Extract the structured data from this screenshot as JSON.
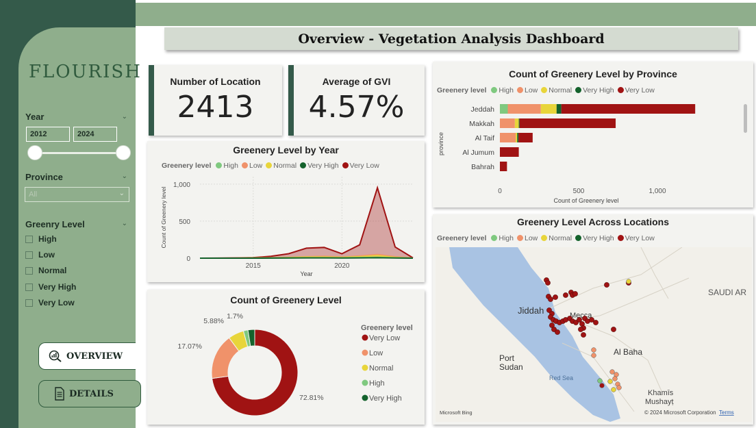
{
  "colors": {
    "high": "#7fc97f",
    "low": "#f0926a",
    "normal": "#e8d53a",
    "very_high": "#14622c",
    "very_low": "#a01313"
  },
  "sidebar": {
    "logo": "FLOURISH",
    "year_filter": {
      "label": "Year",
      "from": "2012",
      "to": "2024"
    },
    "province_filter": {
      "label": "Province",
      "value": "All"
    },
    "greenery_filter": {
      "label": "Greenry Level",
      "options": [
        "High",
        "Low",
        "Normal",
        "Very High",
        "Very Low"
      ]
    },
    "nav": {
      "overview": "OVERVIEW",
      "details": "DETAILS"
    }
  },
  "header": {
    "title": "Overview - Vegetation Analysis Dashboard"
  },
  "kpis": {
    "locations": {
      "label": "Number of Location",
      "value": "2413"
    },
    "gvi": {
      "label": "Average of GVI",
      "value": "4.57%"
    }
  },
  "legend": {
    "title": "Greenery level",
    "items": [
      "High",
      "Low",
      "Normal",
      "Very High",
      "Very Low"
    ]
  },
  "chart_data": [
    {
      "type": "area",
      "title": "Greenery Level by Year",
      "xlabel": "Year",
      "ylabel": "Count of Greenery level",
      "x": [
        2012,
        2013,
        2014,
        2015,
        2016,
        2017,
        2018,
        2019,
        2020,
        2021,
        2022,
        2023,
        2024
      ],
      "xticks": [
        "2015",
        "2020"
      ],
      "yticks": [
        "0",
        "500",
        "1,000"
      ],
      "ylim": [
        0,
        1100
      ],
      "series": [
        {
          "name": "Very Low",
          "values": [
            0,
            1,
            3,
            8,
            25,
            60,
            135,
            145,
            60,
            180,
            950,
            150,
            5
          ]
        },
        {
          "name": "Low",
          "values": [
            0,
            0,
            1,
            3,
            6,
            10,
            20,
            25,
            15,
            30,
            50,
            20,
            1
          ]
        },
        {
          "name": "Normal",
          "values": [
            0,
            0,
            0,
            2,
            4,
            8,
            15,
            15,
            10,
            20,
            35,
            10,
            0
          ]
        },
        {
          "name": "High",
          "values": [
            0,
            0,
            0,
            1,
            2,
            3,
            6,
            6,
            4,
            8,
            12,
            5,
            0
          ]
        },
        {
          "name": "Very High",
          "values": [
            0,
            0,
            0,
            0,
            1,
            2,
            3,
            3,
            2,
            4,
            6,
            2,
            0
          ]
        }
      ]
    },
    {
      "type": "bar",
      "orientation": "horizontal",
      "stacked": true,
      "title": "Count of Greenery Level by Province",
      "xlabel": "Count of Greenery level",
      "ylabel": "province",
      "categories": [
        "Jeddah",
        "Makkah",
        "Al Taif",
        "Al Jumum",
        "Bahrah"
      ],
      "xticks": [
        "0",
        "500",
        "1,000"
      ],
      "xlim": [
        0,
        1400
      ],
      "series": [
        {
          "name": "High",
          "values": [
            50,
            0,
            0,
            0,
            0
          ]
        },
        {
          "name": "Low",
          "values": [
            210,
            95,
            100,
            0,
            0
          ]
        },
        {
          "name": "Normal",
          "values": [
            100,
            25,
            10,
            0,
            0
          ]
        },
        {
          "name": "Very High",
          "values": [
            30,
            5,
            8,
            0,
            0
          ]
        },
        {
          "name": "Very Low",
          "values": [
            850,
            610,
            90,
            120,
            45
          ]
        }
      ]
    },
    {
      "type": "pie",
      "donut": true,
      "title": "Count of Greenery Level",
      "legend_title": "Greenery level",
      "slices": [
        {
          "name": "Very Low",
          "value": 72.81,
          "label": "72.81%"
        },
        {
          "name": "Low",
          "value": 17.07,
          "label": "17.07%"
        },
        {
          "name": "Normal",
          "value": 5.88,
          "label": "5.88%"
        },
        {
          "name": "High",
          "value": 1.7,
          "label": "1.7%"
        },
        {
          "name": "Very High",
          "value": 2.54,
          "label": ""
        }
      ],
      "legend_order": [
        "Very Low",
        "Low",
        "Normal",
        "High",
        "Very High"
      ]
    }
  ],
  "map": {
    "title": "Greenery Level Across Locations",
    "labels": {
      "jiddah": "Jiddah",
      "mecca": "Mecca",
      "saudi": "SAUDI AR",
      "albaha": "Al Baha",
      "port1": "Port",
      "port2": "Sudan",
      "redsea": "Red Sea",
      "khamis1": "Khamīs",
      "khamis2": "Mushayṭ"
    },
    "attribution": "© 2024 Microsoft Corporation",
    "terms": "Terms",
    "bing": "Microsoft Bing"
  }
}
